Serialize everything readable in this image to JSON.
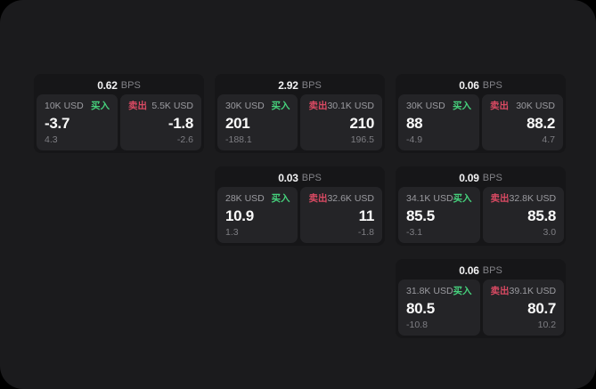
{
  "labels": {
    "bps_unit": "BPS",
    "buy": "买入",
    "sell": "卖出"
  },
  "colors": {
    "buy": "#46d17c",
    "sell": "#da4a63",
    "panel_bg": "#1b1b1d",
    "card_bg": "#161618",
    "pane_bg": "#242427"
  },
  "cards": [
    {
      "bps": "0.62",
      "col": 1,
      "row": 1,
      "buy": {
        "size": "10K USD",
        "value": "-3.7",
        "sub": "4.3"
      },
      "sell": {
        "size": "5.5K USD",
        "value": "-1.8",
        "sub": "-2.6"
      }
    },
    {
      "bps": "2.92",
      "col": 2,
      "row": 1,
      "buy": {
        "size": "30K USD",
        "value": "201",
        "sub": "-188.1"
      },
      "sell": {
        "size": "30.1K USD",
        "value": "210",
        "sub": "196.5"
      }
    },
    {
      "bps": "0.06",
      "col": 3,
      "row": 1,
      "buy": {
        "size": "30K USD",
        "value": "88",
        "sub": "-4.9"
      },
      "sell": {
        "size": "30K USD",
        "value": "88.2",
        "sub": "4.7"
      }
    },
    {
      "bps": "0.03",
      "col": 2,
      "row": 2,
      "buy": {
        "size": "28K USD",
        "value": "10.9",
        "sub": "1.3"
      },
      "sell": {
        "size": "32.6K USD",
        "value": "11",
        "sub": "-1.8"
      }
    },
    {
      "bps": "0.09",
      "col": 3,
      "row": 2,
      "buy": {
        "size": "34.1K USD",
        "value": "85.5",
        "sub": "-3.1"
      },
      "sell": {
        "size": "32.8K USD",
        "value": "85.8",
        "sub": "3.0"
      }
    },
    {
      "bps": "0.06",
      "col": 3,
      "row": 3,
      "buy": {
        "size": "31.8K USD",
        "value": "80.5",
        "sub": "-10.8"
      },
      "sell": {
        "size": "39.1K USD",
        "value": "80.7",
        "sub": "10.2"
      }
    }
  ]
}
